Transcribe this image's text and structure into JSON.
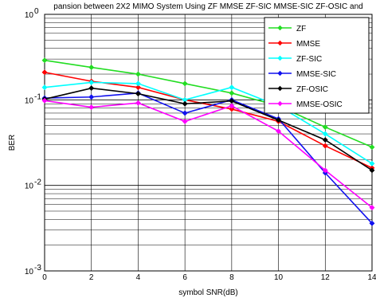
{
  "chart_data": {
    "type": "line",
    "title": "pansion between 2X2 MIMO System Using ZF MMSE ZF-SIC MMSE-SIC ZF-OSIC and",
    "xlabel": "symbol SNR(dB)",
    "ylabel": "BER",
    "x": [
      0,
      2,
      4,
      6,
      8,
      10,
      12,
      14
    ],
    "xlim": [
      0,
      14
    ],
    "ylim": [
      0.001,
      1
    ],
    "yscale": "log",
    "xticks": [
      "0",
      "2",
      "4",
      "6",
      "8",
      "10",
      "12",
      "14"
    ],
    "ytick_mantissa": "10",
    "ytick_exponents": [
      "0",
      "-1",
      "-2",
      "-3"
    ],
    "grid": true,
    "legend_position": "top-right",
    "series": [
      {
        "name": "ZF",
        "color": "#22dd22",
        "values": [
          0.29,
          0.24,
          0.2,
          0.155,
          0.12,
          0.085,
          0.048,
          0.028
        ]
      },
      {
        "name": "MMSE",
        "color": "#ff0000",
        "values": [
          0.21,
          0.165,
          0.14,
          0.1,
          0.078,
          0.056,
          0.029,
          0.016
        ]
      },
      {
        "name": "ZF-SIC",
        "color": "#00ffff",
        "values": [
          0.14,
          0.16,
          0.155,
          0.1,
          0.14,
          0.085,
          0.04,
          0.018
        ]
      },
      {
        "name": "MMSE-SIC",
        "color": "#1111ee",
        "values": [
          0.105,
          0.108,
          0.12,
          0.07,
          0.1,
          0.06,
          0.014,
          0.0036
        ]
      },
      {
        "name": "ZF-OSIC",
        "color": "#000000",
        "values": [
          0.102,
          0.137,
          0.118,
          0.09,
          0.097,
          0.058,
          0.034,
          0.015
        ]
      },
      {
        "name": "MMSE-OSIC",
        "color": "#ff00ff",
        "values": [
          0.098,
          0.082,
          0.092,
          0.056,
          0.085,
          0.043,
          0.015,
          0.0055
        ]
      }
    ]
  }
}
